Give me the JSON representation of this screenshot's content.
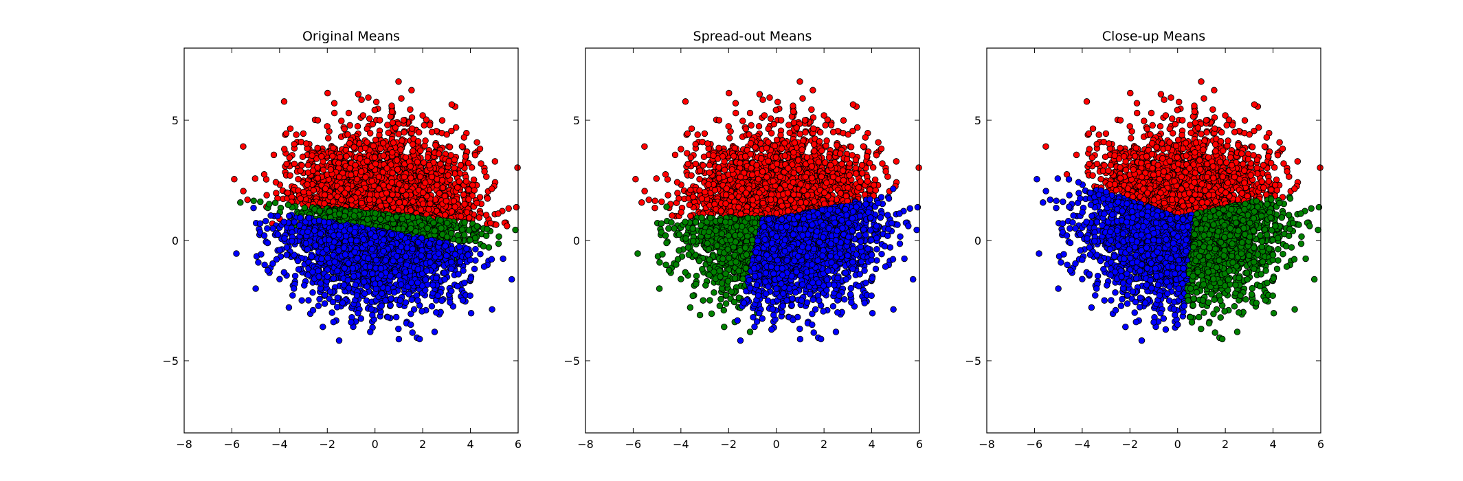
{
  "chart_data": [
    {
      "type": "scatter",
      "title": "Original Means",
      "xlim": [
        -8,
        6
      ],
      "ylim": [
        -8,
        8
      ],
      "xticks": [
        -8,
        -6,
        -4,
        -2,
        0,
        2,
        4,
        6
      ],
      "yticks": [
        -5,
        0,
        5
      ],
      "series": [
        {
          "color": "#ff0000",
          "rule": "upper",
          "points": [
            [
              -5.9,
              2.55
            ],
            [
              -4.55,
              1.4
            ],
            [
              -3.8,
              3.8
            ],
            [
              -3.3,
              4.4
            ],
            [
              -2.4,
              5.0
            ],
            [
              -1.7,
              5.3
            ],
            [
              -1.1,
              5.3
            ],
            [
              -0.5,
              5.2
            ],
            [
              0.2,
              5.0
            ],
            [
              0.7,
              5.6
            ],
            [
              1.2,
              5.0
            ],
            [
              2.0,
              5.2
            ],
            [
              2.3,
              4.8
            ],
            [
              3.4,
              4.7
            ],
            [
              3.8,
              3.5
            ],
            [
              4.4,
              1.8
            ],
            [
              4.9,
              2.15
            ],
            [
              4.2,
              3.55
            ],
            [
              3.95,
              0.95
            ],
            [
              4.1,
              0.6
            ],
            [
              3.6,
              1.0
            ],
            [
              -4.0,
              0.9
            ],
            [
              -3.1,
              0.75
            ],
            [
              -2.6,
              2.9
            ],
            [
              -1.2,
              3.5
            ],
            [
              0.5,
              3.0
            ],
            [
              1.5,
              2.6
            ],
            [
              2.6,
              2.3
            ],
            [
              3.1,
              3.3
            ],
            [
              -3.5,
              1.6
            ],
            [
              -4.3,
              0.7
            ]
          ]
        },
        {
          "color": "#008000",
          "rule": "middle",
          "points": [
            [
              -3.1,
              1.0
            ],
            [
              -2.5,
              0.9
            ],
            [
              -1.5,
              0.75
            ],
            [
              -0.5,
              0.7
            ],
            [
              0.5,
              0.55
            ],
            [
              1.5,
              0.5
            ],
            [
              2.5,
              0.4
            ],
            [
              3.2,
              0.3
            ],
            [
              3.5,
              0.0
            ],
            [
              3.4,
              -0.4
            ],
            [
              3.3,
              -0.8
            ],
            [
              -3.4,
              0.6
            ]
          ]
        },
        {
          "color": "#0000ff",
          "rule": "lower",
          "points": [
            [
              -5.0,
              -2.0
            ],
            [
              -4.5,
              -0.1
            ],
            [
              -4.0,
              -0.4
            ],
            [
              -3.7,
              -0.6
            ],
            [
              -3.4,
              -2.0
            ],
            [
              -2.6,
              -2.9
            ],
            [
              -1.8,
              -3.0
            ],
            [
              -1.0,
              -3.4
            ],
            [
              -0.2,
              -3.8
            ],
            [
              1.0,
              -4.1
            ],
            [
              1.5,
              -3.5
            ],
            [
              2.5,
              -3.8
            ],
            [
              2.8,
              -2.5
            ],
            [
              3.2,
              -2.1
            ],
            [
              3.5,
              -1.4
            ],
            [
              3.9,
              -0.6
            ],
            [
              -3.2,
              -1.2
            ],
            [
              -2.0,
              -1.5
            ],
            [
              0.0,
              -1.8
            ],
            [
              1.8,
              -1.2
            ]
          ]
        }
      ]
    },
    {
      "type": "scatter",
      "title": "Spread-out Means",
      "xlim": [
        -8,
        6
      ],
      "ylim": [
        -8,
        8
      ],
      "xticks": [
        -8,
        -6,
        -4,
        -2,
        0,
        2,
        4,
        6
      ],
      "yticks": [
        -5,
        0,
        5
      ],
      "series": [
        {
          "color": "#ff0000",
          "rule": "upper",
          "points": [
            [
              -5.9,
              2.55
            ],
            [
              -4.0,
              3.8
            ],
            [
              -3.3,
              4.4
            ],
            [
              -2.4,
              5.0
            ],
            [
              -1.7,
              5.3
            ],
            [
              -1.1,
              5.3
            ],
            [
              -0.5,
              5.2
            ],
            [
              0.2,
              5.0
            ],
            [
              0.7,
              5.6
            ],
            [
              1.2,
              5.0
            ],
            [
              2.0,
              5.2
            ],
            [
              2.3,
              4.8
            ],
            [
              3.4,
              4.7
            ],
            [
              3.8,
              3.5
            ],
            [
              4.2,
              3.55
            ],
            [
              3.6,
              2.8
            ],
            [
              3.0,
              2.2
            ],
            [
              -3.2,
              2.9
            ],
            [
              -1.3,
              3.5
            ],
            [
              0.5,
              3.0
            ],
            [
              1.5,
              2.6
            ],
            [
              -3.6,
              2.1
            ]
          ]
        },
        {
          "color": "#008000",
          "rule": "left",
          "points": [
            [
              -4.9,
              -2.0
            ],
            [
              -4.6,
              1.4
            ],
            [
              -4.4,
              0.75
            ],
            [
              -4.6,
              -0.1
            ],
            [
              -4.2,
              -1.0
            ],
            [
              -3.5,
              -2.3
            ],
            [
              -3.2,
              -3.1
            ],
            [
              -2.2,
              -2.9
            ],
            [
              -1.5,
              -2.8
            ],
            [
              -1.1,
              -3.8
            ],
            [
              -0.8,
              -3.0
            ],
            [
              -3.5,
              0.5
            ],
            [
              -2.8,
              -0.8
            ],
            [
              -2.0,
              0.2
            ],
            [
              -1.4,
              -1.6
            ]
          ]
        },
        {
          "color": "#0000ff",
          "rule": "right",
          "points": [
            [
              4.9,
              2.15
            ],
            [
              4.4,
              1.8
            ],
            [
              3.95,
              0.95
            ],
            [
              4.2,
              0.6
            ],
            [
              4.0,
              -0.6
            ],
            [
              3.5,
              -1.4
            ],
            [
              3.7,
              -2.6
            ],
            [
              2.5,
              -3.8
            ],
            [
              1.5,
              -3.5
            ],
            [
              1.0,
              -4.1
            ],
            [
              -0.2,
              -3.7
            ],
            [
              0.7,
              -3.3
            ],
            [
              0.0,
              -2.0
            ],
            [
              1.5,
              -1.0
            ],
            [
              2.5,
              0.0
            ],
            [
              2.9,
              1.3
            ],
            [
              -0.4,
              -0.6
            ]
          ]
        }
      ]
    },
    {
      "type": "scatter",
      "title": "Close-up Means",
      "xlim": [
        -8,
        6
      ],
      "ylim": [
        -8,
        8
      ],
      "xticks": [
        -8,
        -6,
        -4,
        -2,
        0,
        2,
        4,
        6
      ],
      "yticks": [
        -5,
        0,
        5
      ],
      "series": [
        {
          "color": "#ff0000",
          "rule": "upper",
          "points": [
            [
              -3.7,
              3.8
            ],
            [
              -3.3,
              4.4
            ],
            [
              -2.4,
              5.0
            ],
            [
              -1.7,
              5.3
            ],
            [
              -1.1,
              5.3
            ],
            [
              -0.5,
              5.2
            ],
            [
              0.2,
              5.0
            ],
            [
              0.7,
              5.6
            ],
            [
              1.2,
              5.0
            ],
            [
              2.0,
              5.2
            ],
            [
              2.3,
              4.8
            ],
            [
              3.4,
              4.7
            ],
            [
              3.8,
              3.5
            ],
            [
              4.2,
              3.55
            ],
            [
              4.4,
              1.8
            ],
            [
              4.9,
              2.15
            ],
            [
              -2.9,
              2.9
            ],
            [
              -1.3,
              3.5
            ],
            [
              0.5,
              3.0
            ],
            [
              1.5,
              2.6
            ],
            [
              2.8,
              2.4
            ],
            [
              3.6,
              2.2
            ],
            [
              -3.2,
              2.2
            ]
          ]
        },
        {
          "color": "#0000ff",
          "rule": "left",
          "points": [
            [
              -5.9,
              2.55
            ],
            [
              -4.55,
              1.4
            ],
            [
              -4.4,
              0.75
            ],
            [
              -4.5,
              -0.1
            ],
            [
              -5.0,
              -2.0
            ],
            [
              -4.0,
              -0.8
            ],
            [
              -3.7,
              -1.4
            ],
            [
              -3.4,
              -2.0
            ],
            [
              -2.6,
              -2.9
            ],
            [
              -1.8,
              -3.0
            ],
            [
              -1.0,
              -3.4
            ],
            [
              -0.5,
              -3.7
            ],
            [
              0.0,
              -3.5
            ],
            [
              -3.3,
              1.9
            ],
            [
              -2.5,
              1.6
            ],
            [
              -1.5,
              -1.0
            ],
            [
              -2.8,
              0.0
            ],
            [
              -1.0,
              0.3
            ]
          ]
        },
        {
          "color": "#008000",
          "rule": "right",
          "points": [
            [
              3.9,
              0.95
            ],
            [
              4.1,
              0.6
            ],
            [
              4.0,
              -0.6
            ],
            [
              3.5,
              -1.4
            ],
            [
              3.3,
              -2.6
            ],
            [
              2.5,
              -3.8
            ],
            [
              1.8,
              -3.2
            ],
            [
              1.1,
              -3.0
            ],
            [
              0.6,
              -3.4
            ],
            [
              2.8,
              1.3
            ],
            [
              3.2,
              -0.3
            ],
            [
              1.5,
              -1.6
            ],
            [
              2.2,
              0.2
            ]
          ]
        }
      ]
    }
  ]
}
